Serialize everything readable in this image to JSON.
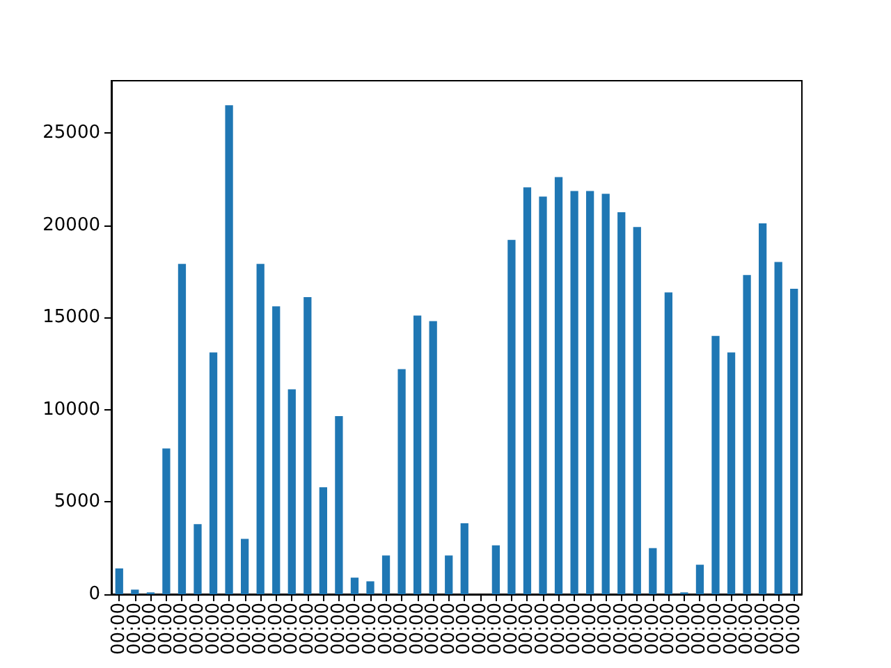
{
  "chart_data": {
    "type": "bar",
    "categories": [
      "00:00",
      "00:00",
      "00:00",
      "00:00",
      "00:00",
      "00:00",
      "00:00",
      "00:00",
      "00:00",
      "00:00",
      "00:00",
      "00:00",
      "00:00",
      "00:00",
      "00:00",
      "00:00",
      "00:00",
      "00:00",
      "00:00",
      "00:00",
      "00:00",
      "00:00",
      "00:00",
      "00:00",
      "00:00",
      "00:00",
      "00:00",
      "00:00",
      "00:00",
      "00:00",
      "00:00",
      "00:00",
      "00:00",
      "00:00",
      "00:00",
      "00:00",
      "00:00",
      "00:00",
      "00:00",
      "00:00",
      "00:00",
      "00:00",
      "00:00",
      "00:00"
    ],
    "values": [
      1400,
      250,
      100,
      7900,
      17900,
      3800,
      13100,
      26500,
      3000,
      17900,
      15600,
      11100,
      16100,
      5800,
      9650,
      900,
      700,
      2100,
      12200,
      15100,
      14800,
      2100,
      3850,
      0,
      2650,
      19200,
      22050,
      21550,
      22600,
      21850,
      21850,
      21700,
      20700,
      19900,
      2500,
      16350,
      100,
      1600,
      14000,
      13100,
      17300,
      20100,
      18000,
      16550
    ],
    "color": "#1f77b4",
    "ylim": [
      0,
      27825
    ],
    "yticks": [
      0,
      5000,
      10000,
      15000,
      20000,
      25000
    ]
  }
}
